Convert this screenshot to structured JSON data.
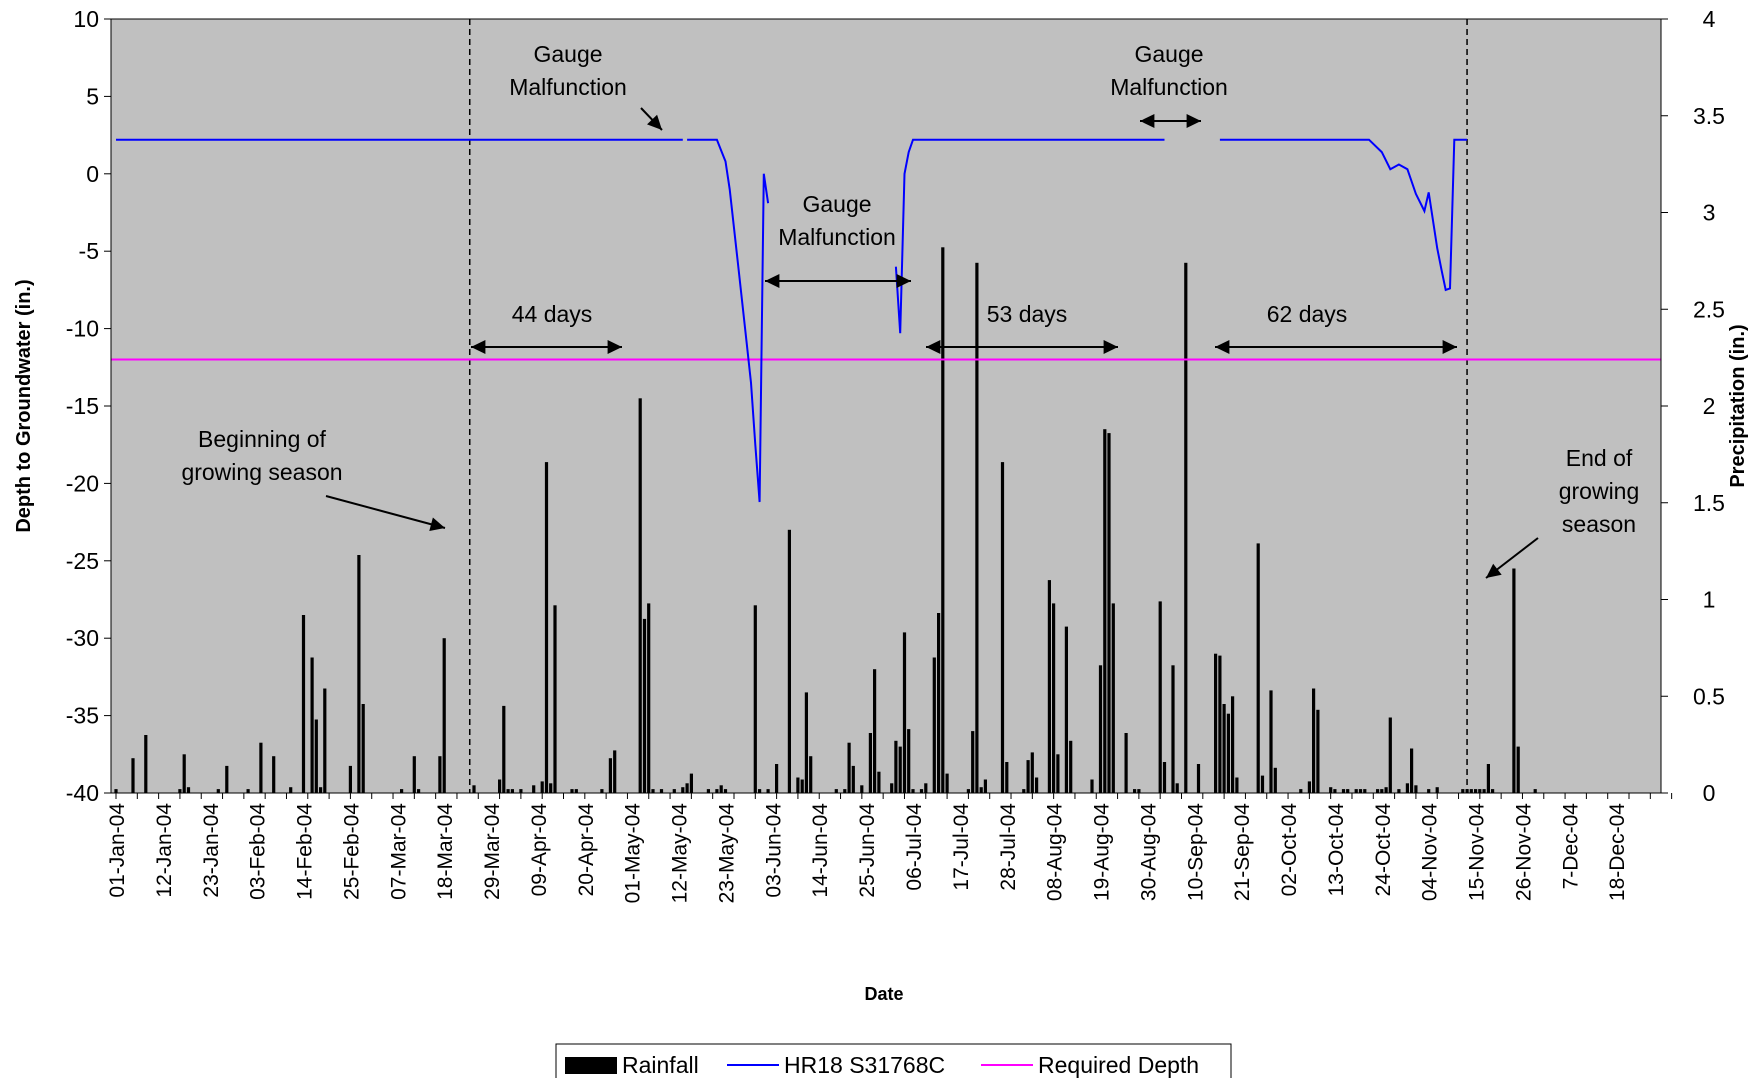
{
  "chart_data": {
    "type": "bar+line",
    "title": "",
    "xlabel": "Date",
    "ylabel_left": "Depth to Groundwater (in.)",
    "ylabel_right": "Precipitation (in.)",
    "ylim_left": [
      -40,
      10
    ],
    "ylim_right": [
      0,
      4
    ],
    "left_ticks": [
      "10",
      "5",
      "0",
      "-5",
      "-10",
      "-15",
      "-20",
      "-25",
      "-30",
      "-35",
      "-40"
    ],
    "right_ticks": [
      "4",
      "3.5",
      "3",
      "2.5",
      "2",
      "1.5",
      "1",
      "0.5",
      "0"
    ],
    "x_tick_labels": [
      "01-Jan-04",
      "12-Jan-04",
      "23-Jan-04",
      "03-Feb-04",
      "14-Feb-04",
      "25-Feb-04",
      "07-Mar-04",
      "18-Mar-04",
      "29-Mar-04",
      "09-Apr-04",
      "20-Apr-04",
      "01-May-04",
      "12-May-04",
      "23-May-04",
      "03-Jun-04",
      "14-Jun-04",
      "25-Jun-04",
      "06-Jul-04",
      "17-Jul-04",
      "28-Jul-04",
      "08-Aug-04",
      "19-Aug-04",
      "30-Aug-04",
      "10-Sep-04",
      "21-Sep-04",
      "02-Oct-04",
      "13-Oct-04",
      "24-Oct-04",
      "04-Nov-04",
      "15-Nov-04",
      "26-Nov-04",
      "7-Dec-04",
      "18-Dec-04"
    ],
    "plot_background": "#c0c0c0",
    "grid": false,
    "legend_position": "bottom",
    "legend": [
      {
        "label": "Rainfall",
        "color": "#000000",
        "kind": "bar"
      },
      {
        "label": "HR18 S31768C",
        "color": "#0000ff",
        "kind": "line"
      },
      {
        "label": "Required Depth",
        "color": "#ff00ff",
        "kind": "line"
      }
    ],
    "required_depth": -12,
    "rainfall": [
      {
        "x": "2004-01-01",
        "y": 0.02
      },
      {
        "x": "2004-01-05",
        "y": 0.18
      },
      {
        "x": "2004-01-08",
        "y": 0.3
      },
      {
        "x": "2004-01-16",
        "y": 0.02
      },
      {
        "x": "2004-01-17",
        "y": 0.2
      },
      {
        "x": "2004-01-18",
        "y": 0.03
      },
      {
        "x": "2004-01-25",
        "y": 0.02
      },
      {
        "x": "2004-01-27",
        "y": 0.14
      },
      {
        "x": "2004-02-01",
        "y": 0.02
      },
      {
        "x": "2004-02-04",
        "y": 0.26
      },
      {
        "x": "2004-02-07",
        "y": 0.19
      },
      {
        "x": "2004-02-11",
        "y": 0.03
      },
      {
        "x": "2004-02-14",
        "y": 0.92
      },
      {
        "x": "2004-02-16",
        "y": 0.7
      },
      {
        "x": "2004-02-17",
        "y": 0.38
      },
      {
        "x": "2004-02-18",
        "y": 0.03
      },
      {
        "x": "2004-02-19",
        "y": 0.54
      },
      {
        "x": "2004-02-25",
        "y": 0.14
      },
      {
        "x": "2004-02-27",
        "y": 1.23
      },
      {
        "x": "2004-02-28",
        "y": 0.46
      },
      {
        "x": "2004-03-08",
        "y": 0.02
      },
      {
        "x": "2004-03-11",
        "y": 0.19
      },
      {
        "x": "2004-03-12",
        "y": 0.02
      },
      {
        "x": "2004-03-17",
        "y": 0.19
      },
      {
        "x": "2004-03-18",
        "y": 0.8
      },
      {
        "x": "2004-03-25",
        "y": 0.04
      },
      {
        "x": "2004-03-31",
        "y": 0.07
      },
      {
        "x": "2004-04-01",
        "y": 0.45
      },
      {
        "x": "2004-04-02",
        "y": 0.02
      },
      {
        "x": "2004-04-03",
        "y": 0.02
      },
      {
        "x": "2004-04-05",
        "y": 0.02
      },
      {
        "x": "2004-04-08",
        "y": 0.04
      },
      {
        "x": "2004-04-10",
        "y": 0.06
      },
      {
        "x": "2004-04-11",
        "y": 1.71
      },
      {
        "x": "2004-04-12",
        "y": 0.05
      },
      {
        "x": "2004-04-13",
        "y": 0.97
      },
      {
        "x": "2004-04-17",
        "y": 0.02
      },
      {
        "x": "2004-04-18",
        "y": 0.02
      },
      {
        "x": "2004-04-24",
        "y": 0.02
      },
      {
        "x": "2004-04-26",
        "y": 0.18
      },
      {
        "x": "2004-04-27",
        "y": 0.22
      },
      {
        "x": "2004-05-03",
        "y": 2.04
      },
      {
        "x": "2004-05-04",
        "y": 0.9
      },
      {
        "x": "2004-05-05",
        "y": 0.98
      },
      {
        "x": "2004-05-06",
        "y": 0.02
      },
      {
        "x": "2004-05-08",
        "y": 0.02
      },
      {
        "x": "2004-05-11",
        "y": 0.02
      },
      {
        "x": "2004-05-13",
        "y": 0.03
      },
      {
        "x": "2004-05-14",
        "y": 0.05
      },
      {
        "x": "2004-05-15",
        "y": 0.1
      },
      {
        "x": "2004-05-19",
        "y": 0.02
      },
      {
        "x": "2004-05-21",
        "y": 0.02
      },
      {
        "x": "2004-05-22",
        "y": 0.04
      },
      {
        "x": "2004-05-23",
        "y": 0.02
      },
      {
        "x": "2004-05-30",
        "y": 0.97
      },
      {
        "x": "2004-05-31",
        "y": 0.02
      },
      {
        "x": "2004-06-02",
        "y": 0.02
      },
      {
        "x": "2004-06-04",
        "y": 0.15
      },
      {
        "x": "2004-06-07",
        "y": 1.36
      },
      {
        "x": "2004-06-09",
        "y": 0.08
      },
      {
        "x": "2004-06-10",
        "y": 0.07
      },
      {
        "x": "2004-06-11",
        "y": 0.52
      },
      {
        "x": "2004-06-12",
        "y": 0.19
      },
      {
        "x": "2004-06-18",
        "y": 0.02
      },
      {
        "x": "2004-06-20",
        "y": 0.02
      },
      {
        "x": "2004-06-21",
        "y": 0.26
      },
      {
        "x": "2004-06-22",
        "y": 0.14
      },
      {
        "x": "2004-06-24",
        "y": 0.04
      },
      {
        "x": "2004-06-26",
        "y": 0.31
      },
      {
        "x": "2004-06-27",
        "y": 0.64
      },
      {
        "x": "2004-06-28",
        "y": 0.11
      },
      {
        "x": "2004-07-01",
        "y": 0.05
      },
      {
        "x": "2004-07-02",
        "y": 0.27
      },
      {
        "x": "2004-07-03",
        "y": 0.24
      },
      {
        "x": "2004-07-04",
        "y": 0.83
      },
      {
        "x": "2004-07-05",
        "y": 0.33
      },
      {
        "x": "2004-07-06",
        "y": 0.02
      },
      {
        "x": "2004-07-08",
        "y": 0.02
      },
      {
        "x": "2004-07-09",
        "y": 0.05
      },
      {
        "x": "2004-07-11",
        "y": 0.7
      },
      {
        "x": "2004-07-12",
        "y": 0.93
      },
      {
        "x": "2004-07-13",
        "y": 2.82
      },
      {
        "x": "2004-07-14",
        "y": 0.1
      },
      {
        "x": "2004-07-19",
        "y": 0.02
      },
      {
        "x": "2004-07-20",
        "y": 0.32
      },
      {
        "x": "2004-07-21",
        "y": 2.74
      },
      {
        "x": "2004-07-22",
        "y": 0.03
      },
      {
        "x": "2004-07-23",
        "y": 0.07
      },
      {
        "x": "2004-07-27",
        "y": 1.71
      },
      {
        "x": "2004-07-28",
        "y": 0.16
      },
      {
        "x": "2004-08-01",
        "y": 0.02
      },
      {
        "x": "2004-08-02",
        "y": 0.17
      },
      {
        "x": "2004-08-03",
        "y": 0.21
      },
      {
        "x": "2004-08-04",
        "y": 0.08
      },
      {
        "x": "2004-08-07",
        "y": 1.1
      },
      {
        "x": "2004-08-08",
        "y": 0.98
      },
      {
        "x": "2004-08-09",
        "y": 0.2
      },
      {
        "x": "2004-08-11",
        "y": 0.86
      },
      {
        "x": "2004-08-12",
        "y": 0.27
      },
      {
        "x": "2004-08-17",
        "y": 0.07
      },
      {
        "x": "2004-08-19",
        "y": 0.66
      },
      {
        "x": "2004-08-20",
        "y": 1.88
      },
      {
        "x": "2004-08-21",
        "y": 1.86
      },
      {
        "x": "2004-08-22",
        "y": 0.98
      },
      {
        "x": "2004-08-25",
        "y": 0.31
      },
      {
        "x": "2004-08-27",
        "y": 0.02
      },
      {
        "x": "2004-08-28",
        "y": 0.02
      },
      {
        "x": "2004-09-02",
        "y": 0.99
      },
      {
        "x": "2004-09-03",
        "y": 0.16
      },
      {
        "x": "2004-09-05",
        "y": 0.66
      },
      {
        "x": "2004-09-06",
        "y": 0.05
      },
      {
        "x": "2004-09-08",
        "y": 2.74
      },
      {
        "x": "2004-09-11",
        "y": 0.15
      },
      {
        "x": "2004-09-15",
        "y": 0.72
      },
      {
        "x": "2004-09-16",
        "y": 0.71
      },
      {
        "x": "2004-09-17",
        "y": 0.46
      },
      {
        "x": "2004-09-18",
        "y": 0.41
      },
      {
        "x": "2004-09-19",
        "y": 0.5
      },
      {
        "x": "2004-09-20",
        "y": 0.08
      },
      {
        "x": "2004-09-25",
        "y": 1.29
      },
      {
        "x": "2004-09-26",
        "y": 0.09
      },
      {
        "x": "2004-09-28",
        "y": 0.53
      },
      {
        "x": "2004-09-29",
        "y": 0.13
      },
      {
        "x": "2004-10-05",
        "y": 0.02
      },
      {
        "x": "2004-10-07",
        "y": 0.06
      },
      {
        "x": "2004-10-08",
        "y": 0.54
      },
      {
        "x": "2004-10-09",
        "y": 0.43
      },
      {
        "x": "2004-10-12",
        "y": 0.03
      },
      {
        "x": "2004-10-13",
        "y": 0.02
      },
      {
        "x": "2004-10-15",
        "y": 0.02
      },
      {
        "x": "2004-10-16",
        "y": 0.02
      },
      {
        "x": "2004-10-18",
        "y": 0.02
      },
      {
        "x": "2004-10-19",
        "y": 0.02
      },
      {
        "x": "2004-10-20",
        "y": 0.02
      },
      {
        "x": "2004-10-23",
        "y": 0.02
      },
      {
        "x": "2004-10-24",
        "y": 0.02
      },
      {
        "x": "2004-10-25",
        "y": 0.03
      },
      {
        "x": "2004-10-26",
        "y": 0.39
      },
      {
        "x": "2004-10-28",
        "y": 0.02
      },
      {
        "x": "2004-10-30",
        "y": 0.05
      },
      {
        "x": "2004-10-31",
        "y": 0.23
      },
      {
        "x": "2004-11-01",
        "y": 0.04
      },
      {
        "x": "2004-11-04",
        "y": 0.02
      },
      {
        "x": "2004-11-06",
        "y": 0.03
      },
      {
        "x": "2004-11-12",
        "y": 0.02
      },
      {
        "x": "2004-11-13",
        "y": 0.02
      },
      {
        "x": "2004-11-14",
        "y": 0.02
      },
      {
        "x": "2004-11-15",
        "y": 0.02
      },
      {
        "x": "2004-11-16",
        "y": 0.02
      },
      {
        "x": "2004-11-17",
        "y": 0.02
      },
      {
        "x": "2004-11-18",
        "y": 0.15
      },
      {
        "x": "2004-11-19",
        "y": 0.02
      },
      {
        "x": "2004-11-24",
        "y": 1.16
      },
      {
        "x": "2004-11-25",
        "y": 0.24
      },
      {
        "x": "2004-11-29",
        "y": 0.02
      }
    ],
    "groundwater_segments": [
      {
        "name": "HR18 S31768C",
        "points": [
          {
            "x": "2004-01-01",
            "y": 2.2
          },
          {
            "x": "2004-05-13",
            "y": 2.2
          }
        ]
      },
      {
        "name": "HR18 S31768C",
        "points": [
          {
            "x": "2004-05-14",
            "y": 2.2
          },
          {
            "x": "2004-05-21",
            "y": 2.2
          },
          {
            "x": "2004-05-22",
            "y": 1.5
          },
          {
            "x": "2004-05-23",
            "y": 0.8
          },
          {
            "x": "2004-05-24",
            "y": -1.0
          },
          {
            "x": "2004-05-26",
            "y": -6.0
          },
          {
            "x": "2004-05-28",
            "y": -11.0
          },
          {
            "x": "2004-05-29",
            "y": -13.5
          },
          {
            "x": "2004-05-30",
            "y": -17.5
          },
          {
            "x": "2004-05-31",
            "y": -21.2
          },
          {
            "x": "2004-06-01",
            "y": 0.0
          },
          {
            "x": "2004-06-02",
            "y": -1.9
          }
        ]
      },
      {
        "name": "HR18 S31768C",
        "points": [
          {
            "x": "2004-07-02",
            "y": -6.0
          },
          {
            "x": "2004-07-03",
            "y": -10.3
          },
          {
            "x": "2004-07-04",
            "y": 0.0
          },
          {
            "x": "2004-07-05",
            "y": 1.4
          },
          {
            "x": "2004-07-06",
            "y": 2.2
          },
          {
            "x": "2004-09-03",
            "y": 2.2
          }
        ]
      },
      {
        "name": "HR18 S31768C",
        "points": [
          {
            "x": "2004-09-16",
            "y": 2.2
          },
          {
            "x": "2004-10-21",
            "y": 2.2
          },
          {
            "x": "2004-10-24",
            "y": 1.4
          },
          {
            "x": "2004-10-26",
            "y": 0.3
          },
          {
            "x": "2004-10-28",
            "y": 0.6
          },
          {
            "x": "2004-10-30",
            "y": 0.3
          },
          {
            "x": "2004-11-01",
            "y": -1.3
          },
          {
            "x": "2004-11-03",
            "y": -2.4
          },
          {
            "x": "2004-11-04",
            "y": -1.2
          },
          {
            "x": "2004-11-06",
            "y": -4.8
          },
          {
            "x": "2004-11-07",
            "y": -6.2
          },
          {
            "x": "2004-11-08",
            "y": -7.5
          },
          {
            "x": "2004-11-09",
            "y": -7.4
          },
          {
            "x": "2004-11-10",
            "y": 2.2
          },
          {
            "x": "2004-11-13",
            "y": 2.2
          }
        ]
      }
    ],
    "growing_season_lines": [
      "2004-03-24",
      "2004-11-13"
    ],
    "annotations": [
      {
        "id": "gm1",
        "lines": [
          "Gauge",
          "Malfunction"
        ]
      },
      {
        "id": "gm2",
        "lines": [
          "Gauge",
          "Malfunction"
        ]
      },
      {
        "id": "gm3",
        "lines": [
          "Gauge",
          "Malfunction"
        ]
      },
      {
        "id": "d44",
        "lines": [
          "44 days"
        ]
      },
      {
        "id": "d53",
        "lines": [
          "53 days"
        ]
      },
      {
        "id": "d62",
        "lines": [
          "62 days"
        ]
      },
      {
        "id": "bgs",
        "lines": [
          "Beginning of",
          "growing season"
        ]
      },
      {
        "id": "egs",
        "lines": [
          "End of",
          "growing",
          "season"
        ]
      }
    ]
  }
}
